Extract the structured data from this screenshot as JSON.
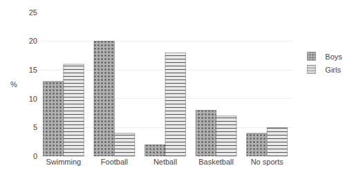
{
  "chart_data": {
    "type": "bar",
    "categories": [
      "Swimming",
      "Football",
      "Netball",
      "Basketball",
      "No sports"
    ],
    "series": [
      {
        "name": "Boys",
        "color": "#b0b0b0",
        "values": [
          13,
          20,
          2,
          8,
          4
        ]
      },
      {
        "name": "Girls",
        "color": "#e8e8e8",
        "values": [
          16,
          4,
          18,
          7,
          5
        ]
      }
    ],
    "ylabel": "%",
    "ylim": [
      0,
      25
    ],
    "yticks": [
      0,
      5,
      10,
      15,
      20,
      25
    ],
    "grid": true,
    "legend": "right"
  }
}
